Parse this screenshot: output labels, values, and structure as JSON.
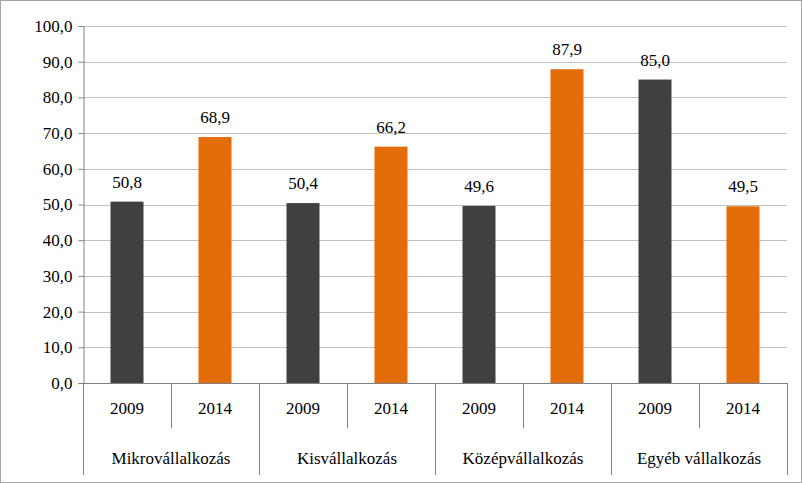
{
  "chart_data": {
    "type": "bar",
    "categories": [
      "Mikrovállalkozás",
      "Kisvállalkozás",
      "Középvállalkozás",
      "Egyéb vállalkozás"
    ],
    "series": [
      {
        "name": "2009",
        "color": "#404040",
        "values": [
          50.8,
          50.4,
          49.6,
          85.0
        ],
        "value_labels": [
          "50,8",
          "50,4",
          "49,6",
          "85,0"
        ]
      },
      {
        "name": "2014",
        "color": "#e46c0a",
        "values": [
          68.9,
          66.2,
          87.9,
          49.5
        ],
        "value_labels": [
          "68,9",
          "66,2",
          "87,9",
          "49,5"
        ]
      }
    ],
    "ylim": [
      0,
      100
    ],
    "yticks": [
      {
        "value": 0,
        "label": "0,0"
      },
      {
        "value": 10,
        "label": "10,0"
      },
      {
        "value": 20,
        "label": "20,0"
      },
      {
        "value": 30,
        "label": "30,0"
      },
      {
        "value": 40,
        "label": "40,0"
      },
      {
        "value": 50,
        "label": "50,0"
      },
      {
        "value": 60,
        "label": "60,0"
      },
      {
        "value": 70,
        "label": "70,0"
      },
      {
        "value": 80,
        "label": "80,0"
      },
      {
        "value": 90,
        "label": "90,0"
      },
      {
        "value": 100,
        "label": "100,0"
      }
    ],
    "grid": true,
    "data_labels": true
  }
}
